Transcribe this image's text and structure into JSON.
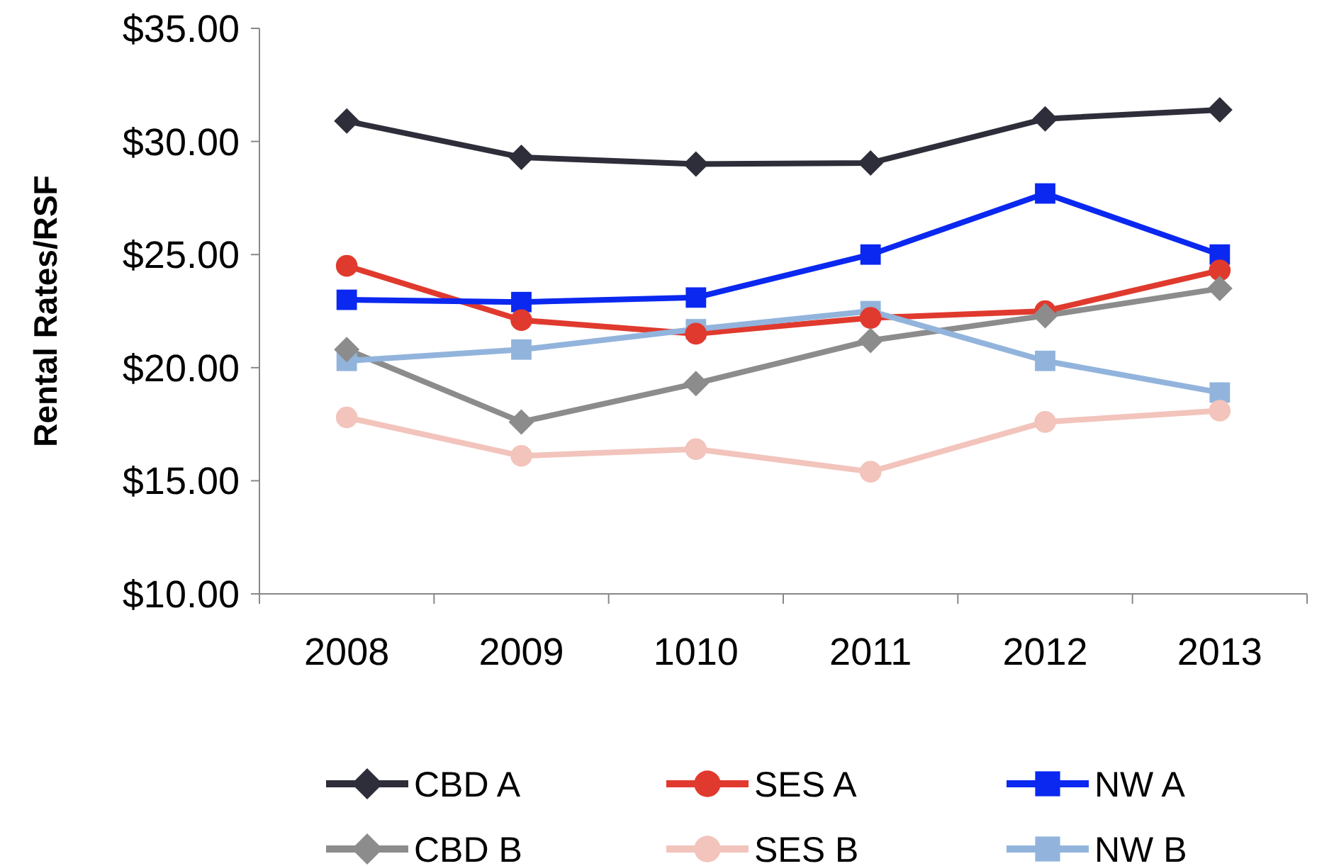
{
  "chart_data": {
    "type": "line",
    "ylabel": "Rental Rates/RSF",
    "categories": [
      "2008",
      "2009",
      "1010",
      "2011",
      "2012",
      "2013"
    ],
    "series": [
      {
        "name": "CBD A",
        "color": "#2e2e3a",
        "marker": "diamond",
        "values": [
          30.9,
          29.3,
          29.0,
          29.05,
          31.0,
          31.4
        ]
      },
      {
        "name": "CBD B",
        "color": "#8c8c8c",
        "marker": "diamond",
        "values": [
          20.8,
          17.6,
          19.3,
          21.2,
          22.3,
          23.5
        ]
      },
      {
        "name": "SES A",
        "color": "#e03a2e",
        "marker": "circle",
        "values": [
          24.5,
          22.1,
          21.5,
          22.2,
          22.5,
          24.3
        ]
      },
      {
        "name": "SES B",
        "color": "#f2c4bc",
        "marker": "circle",
        "values": [
          17.8,
          16.1,
          16.4,
          15.4,
          17.6,
          18.1
        ]
      },
      {
        "name": "NW A",
        "color": "#0a28f0",
        "marker": "square",
        "values": [
          23.0,
          22.9,
          23.1,
          25.0,
          27.7,
          25.0
        ]
      },
      {
        "name": "NW B",
        "color": "#92b4dc",
        "marker": "square",
        "values": [
          20.3,
          20.8,
          21.7,
          22.5,
          20.3,
          18.9
        ]
      }
    ],
    "ylim": [
      10,
      35
    ],
    "yticks": [
      {
        "value": 10,
        "label": "$10.00"
      },
      {
        "value": 15,
        "label": "$15.00"
      },
      {
        "value": 20,
        "label": "$20.00"
      },
      {
        "value": 25,
        "label": "$25.00"
      },
      {
        "value": 30,
        "label": "$30.00"
      },
      {
        "value": 35,
        "label": "$35.00"
      }
    ],
    "grid": false,
    "legend": "bottom"
  }
}
